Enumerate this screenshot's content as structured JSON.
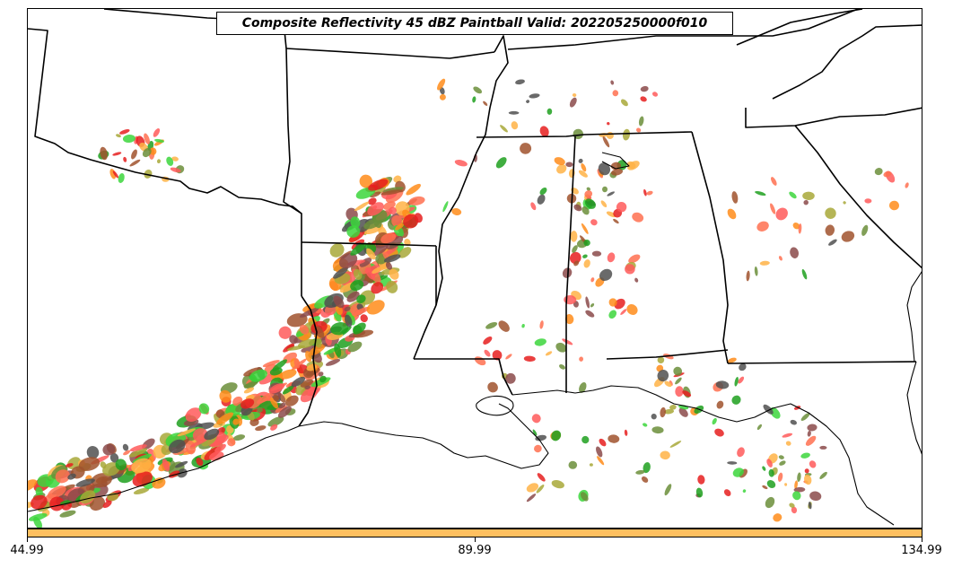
{
  "title": "Composite Reflectivity 45 dBZ Paintball Valid: 202205250000f010",
  "colorbar": {
    "color": "#ffc060",
    "ticks": [
      "44.99",
      "89.99",
      "134.99"
    ]
  },
  "member_colors": [
    "#ff5a5a",
    "#ff8c1a",
    "#ffb347",
    "#3cd63c",
    "#1ea01e",
    "#a0522d",
    "#8b4a4a",
    "#a8a838",
    "#6b8e3a",
    "#e61e1e",
    "#505050",
    "#ff7050"
  ],
  "map_features": [
    "state-borders",
    "coastline"
  ]
}
